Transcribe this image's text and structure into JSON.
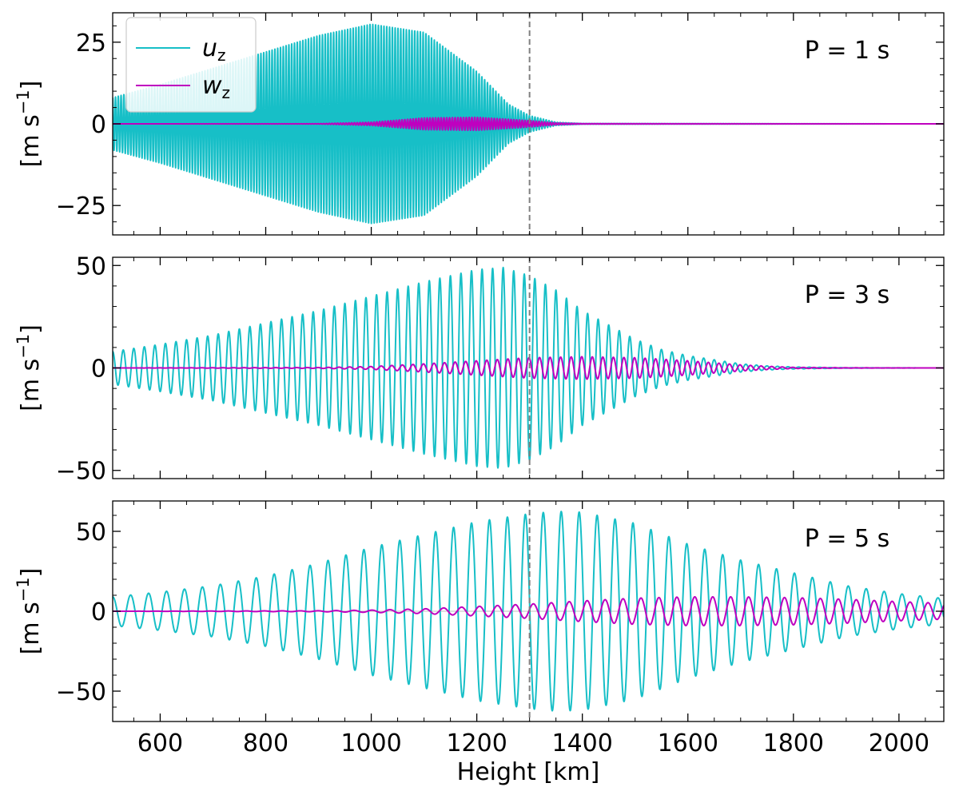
{
  "chart_data": {
    "type": "line",
    "xlabel": "Height [km]",
    "xlim": [
      510,
      2085
    ],
    "x_ticks": [
      600,
      800,
      1000,
      1200,
      1400,
      1600,
      1800,
      2000
    ],
    "x_tick_labels": [
      "600",
      "800",
      "1000",
      "1200",
      "1400",
      "1600",
      "1800",
      "2000"
    ],
    "reference_line_x": 1300,
    "colors": {
      "uz": "#17bfc7",
      "wz": "#bf00bf",
      "refline": "#808080",
      "zeroline": "#bfbfbf"
    },
    "legend": {
      "location": "upper-left",
      "entries": [
        {
          "key": "uz",
          "main": "u",
          "sub": "z",
          "label": "u_z"
        },
        {
          "key": "wz",
          "main": "w",
          "sub": "z",
          "label": "w_z"
        }
      ]
    },
    "panels": [
      {
        "period_label": "P = 1 s",
        "period_s": 1,
        "ylim": [
          -34,
          34
        ],
        "y_ticks": [
          -25,
          0,
          25
        ],
        "y_tick_labels": [
          "−25",
          "0",
          "25"
        ],
        "ylabel_main": "[m s",
        "ylabel_sup": "−1",
        "ylabel_end": "]",
        "show_legend": true,
        "show_zero_line": false,
        "series": [
          {
            "name": "u_z",
            "key": "uz",
            "wavelength_km": 5.3,
            "envelope_km": [
              510,
              600,
              700,
              800,
              900,
              1000,
              1100,
              1200,
              1260,
              1300,
              1350,
              1400,
              2085
            ],
            "envelope_amp": [
              8,
              12,
              17,
              22,
              27,
              30.5,
              28,
              16,
              6,
              2.5,
              0.5,
              0.1,
              0
            ]
          },
          {
            "name": "w_z",
            "key": "wz",
            "wavelength_km": 5.3,
            "envelope_km": [
              510,
              900,
              1000,
              1100,
              1200,
              1300,
              1350,
              1400,
              2085
            ],
            "envelope_amp": [
              0,
              0.05,
              0.5,
              1.8,
              2.0,
              1.0,
              0.3,
              0.1,
              0
            ]
          }
        ]
      },
      {
        "period_label": "P = 3 s",
        "period_s": 3,
        "ylim": [
          -54,
          54
        ],
        "y_ticks": [
          -50,
          0,
          50
        ],
        "y_tick_labels": [
          "−50",
          "0",
          "50"
        ],
        "ylabel_main": "[m s",
        "ylabel_sup": "−1",
        "ylabel_end": "]",
        "show_legend": false,
        "show_zero_line": false,
        "series": [
          {
            "name": "u_z",
            "key": "uz",
            "wavelength_km": 20,
            "envelope_km": [
              510,
              600,
              700,
              800,
              900,
              1000,
              1100,
              1200,
              1250,
              1300,
              1350,
              1400,
              1450,
              1500,
              1550,
              1600,
              1650,
              1700,
              1750,
              1800,
              1900,
              2085
            ],
            "envelope_amp": [
              8,
              11.5,
              16,
              22,
              28,
              35,
              42,
              48,
              49,
              45,
              38,
              28,
              21,
              14,
              9,
              6,
              4,
              2,
              1,
              0.5,
              0.1,
              0
            ]
          },
          {
            "name": "w_z",
            "key": "wz",
            "wavelength_km": 20,
            "envelope_km": [
              510,
              900,
              1000,
              1100,
              1200,
              1300,
              1400,
              1500,
              1550,
              1600,
              1650,
              1700,
              1750,
              1800,
              1900,
              2085
            ],
            "envelope_amp": [
              0,
              0.2,
              0.7,
              2,
              3.5,
              5,
              5.5,
              5,
              4.3,
              3.5,
              2.5,
              1.5,
              0.8,
              0.3,
              0.1,
              0
            ]
          }
        ]
      },
      {
        "period_label": "P = 5 s",
        "period_s": 5,
        "ylim": [
          -69,
          69
        ],
        "y_ticks": [
          -50,
          0,
          50
        ],
        "y_tick_labels": [
          "−50",
          "0",
          "50"
        ],
        "ylabel_main": "[m s",
        "ylabel_sup": "−1",
        "ylabel_end": "]",
        "show_legend": false,
        "show_zero_line": true,
        "series": [
          {
            "name": "u_z",
            "key": "uz",
            "wavelength_km": 34,
            "envelope_km": [
              510,
              600,
              700,
              800,
              900,
              1000,
              1100,
              1200,
              1300,
              1350,
              1400,
              1500,
              1600,
              1700,
              1800,
              1900,
              2000,
              2085
            ],
            "envelope_amp": [
              9,
              12,
              16,
              22,
              30,
              40,
              48,
              56,
              61,
              62.5,
              62,
              55,
              42,
              32,
              24,
              16,
              11,
              8
            ]
          },
          {
            "name": "w_z",
            "key": "wz",
            "wavelength_km": 34,
            "envelope_km": [
              510,
              900,
              1000,
              1100,
              1200,
              1300,
              1400,
              1500,
              1600,
              1700,
              1800,
              1900,
              2000,
              2085
            ],
            "envelope_amp": [
              0,
              0.3,
              0.7,
              1.5,
              3,
              4.5,
              6.5,
              8.2,
              9,
              9,
              8.5,
              7.5,
              6,
              5
            ]
          }
        ]
      }
    ]
  }
}
